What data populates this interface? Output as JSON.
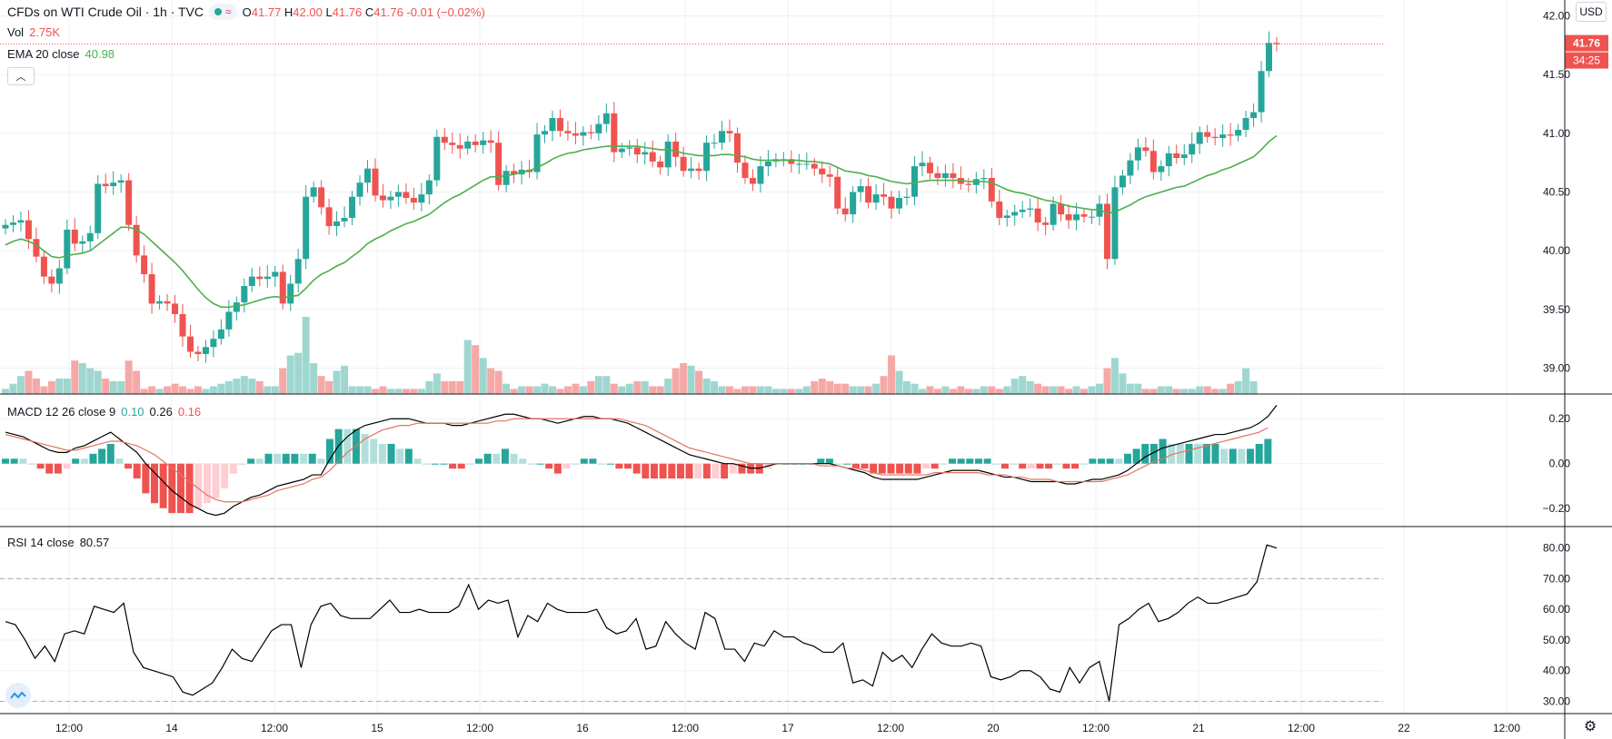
{
  "header": {
    "symbol_title": "CFDs on WTI Crude Oil · 1h · TVC",
    "ohlc": {
      "o_label": "O",
      "o": "41.77",
      "h_label": "H",
      "h": "42.00",
      "l_label": "L",
      "l": "41.76",
      "c_label": "C",
      "c": "41.76",
      "change": "-0.01 (−0.02%)"
    },
    "vol_label": "Vol",
    "vol_value": "2.75K",
    "ema_label": "EMA 20 close",
    "ema_value": "40.98",
    "collapse_icon": "chevron-up-icon",
    "currency": "USD"
  },
  "macd_legend": {
    "label": "MACD 12 26 close 9",
    "hist": "0.10",
    "macd": "0.26",
    "signal": "0.16"
  },
  "rsi_legend": {
    "label": "RSI 14 close",
    "value": "80.57"
  },
  "price_tag": {
    "price": "41.76",
    "countdown": "34:25"
  },
  "colors": {
    "up": "#26a69a",
    "down": "#ef5350",
    "ema": "#4caf50",
    "macd": "#000000",
    "signal": "#e5735f",
    "rsi": "#000000",
    "grid": "#eef0f3"
  },
  "chart_data": {
    "type": "candlestick",
    "title": "CFDs on WTI Crude Oil · 1h · TVC",
    "x_tick_labels": [
      "12:00",
      "14",
      "12:00",
      "15",
      "12:00",
      "16",
      "12:00",
      "17",
      "12:00",
      "20",
      "12:00",
      "21",
      "12:00",
      "22",
      "12:00"
    ],
    "price_axis": {
      "ticks": [
        "42.00",
        "41.50",
        "41.00",
        "40.50",
        "40.00",
        "39.50",
        "39.00"
      ],
      "range": [
        38.78,
        42.12
      ]
    },
    "candles_close": [
      40.22,
      40.24,
      40.26,
      40.1,
      39.95,
      39.78,
      39.72,
      39.85,
      40.18,
      40.06,
      40.08,
      40.15,
      40.57,
      40.55,
      40.58,
      40.6,
      40.22,
      39.96,
      39.8,
      39.55,
      39.57,
      39.55,
      39.46,
      39.27,
      39.14,
      39.12,
      39.18,
      39.25,
      39.33,
      39.48,
      39.56,
      39.7,
      39.78,
      39.76,
      39.78,
      39.82,
      39.55,
      39.72,
      39.93,
      40.46,
      40.54,
      40.37,
      40.21,
      40.25,
      40.28,
      40.46,
      40.58,
      40.7,
      40.47,
      40.43,
      40.46,
      40.5,
      40.45,
      40.41,
      40.48,
      40.6,
      40.97,
      40.92,
      40.9,
      40.87,
      40.93,
      40.9,
      40.94,
      40.92,
      40.56,
      40.68,
      40.65,
      40.69,
      40.67,
      40.99,
      41.02,
      41.13,
      41.02,
      41.0,
      40.98,
      41.01,
      41.0,
      41.08,
      41.17,
      40.84,
      40.87,
      40.88,
      40.82,
      40.84,
      40.76,
      40.71,
      40.93,
      40.8,
      40.68,
      40.7,
      40.68,
      40.92,
      40.92,
      41.02,
      41.0,
      40.75,
      40.62,
      40.57,
      40.72,
      40.76,
      40.78,
      40.78,
      40.74,
      40.74,
      40.74,
      40.7,
      40.65,
      40.63,
      40.36,
      40.31,
      40.5,
      40.55,
      40.41,
      40.48,
      40.46,
      40.36,
      40.45,
      40.46,
      40.72,
      40.75,
      40.66,
      40.62,
      40.66,
      40.62,
      40.57,
      40.56,
      40.61,
      40.62,
      40.42,
      40.28,
      40.3,
      40.33,
      40.35,
      40.36,
      40.24,
      40.22,
      40.4,
      40.31,
      40.26,
      40.31,
      40.29,
      40.29,
      40.4,
      39.93,
      40.54,
      40.64,
      40.77,
      40.88,
      40.85,
      40.67,
      40.72,
      40.83,
      40.79,
      40.82,
      40.91,
      41.01,
      40.97,
      40.96,
      40.99,
      40.98,
      41.03,
      41.13,
      41.18,
      41.53,
      41.77,
      41.76
    ],
    "ema20": [
      40.05,
      40.08,
      40.1,
      40.08,
      40.05,
      40.0,
      39.95,
      39.94,
      39.96,
      39.97,
      39.98,
      40.0,
      40.05,
      40.1,
      40.15,
      40.2,
      40.2,
      40.18,
      40.14,
      40.08,
      40.02,
      39.96,
      39.9,
      39.83,
      39.75,
      39.67,
      39.6,
      39.55,
      39.52,
      39.52,
      39.53,
      39.54,
      39.56,
      39.58,
      39.6,
      39.61,
      39.6,
      39.61,
      39.62,
      39.68,
      39.75,
      39.8,
      39.83,
      39.87,
      39.9,
      39.95,
      40.0,
      40.06,
      40.1,
      40.13,
      40.17,
      40.2,
      40.23,
      40.25,
      40.28,
      40.31,
      40.36,
      40.41,
      40.45,
      40.48,
      40.52,
      40.56,
      40.6,
      40.63,
      40.63,
      40.64,
      40.65,
      40.67,
      40.68,
      40.71,
      40.74,
      40.78,
      40.81,
      40.83,
      40.84,
      40.86,
      40.87,
      40.88,
      40.89,
      40.89,
      40.89,
      40.89,
      40.89,
      40.88,
      40.87,
      40.86,
      40.86,
      40.85,
      40.83,
      40.82,
      40.81,
      40.81,
      40.81,
      40.82,
      40.82,
      40.81,
      40.8,
      40.78,
      40.77,
      40.77,
      40.77,
      40.77,
      40.77,
      40.77,
      40.76,
      40.76,
      40.75,
      40.74,
      40.71,
      40.68,
      40.67,
      40.66,
      40.64,
      40.63,
      40.61,
      40.59,
      40.58,
      40.57,
      40.58,
      40.59,
      40.6,
      40.6,
      40.6,
      40.6,
      40.6,
      40.59,
      40.59,
      40.59,
      40.58,
      40.55,
      40.52,
      40.5,
      40.49,
      40.47,
      40.45,
      40.43,
      40.42,
      40.4,
      40.38,
      40.37,
      40.36,
      40.35,
      40.35,
      40.32,
      40.33,
      40.36,
      40.39,
      40.43,
      40.46,
      40.48,
      40.5,
      40.52,
      40.54,
      40.55,
      40.58,
      40.61,
      40.64,
      40.66,
      40.69,
      40.71,
      40.74,
      40.77,
      40.8,
      40.86,
      40.93,
      40.98
    ],
    "volume": [
      0.2,
      0.4,
      0.7,
      0.9,
      0.6,
      0.3,
      0.5,
      0.6,
      0.6,
      1.3,
      1.2,
      1.0,
      0.9,
      0.6,
      0.5,
      0.5,
      1.3,
      0.9,
      0.2,
      0.3,
      0.2,
      0.3,
      0.4,
      0.3,
      0.2,
      0.3,
      0.2,
      0.3,
      0.4,
      0.5,
      0.6,
      0.7,
      0.6,
      0.5,
      0.3,
      0.3,
      1.0,
      1.5,
      1.6,
      3.0,
      1.2,
      0.7,
      0.5,
      0.9,
      1.1,
      0.3,
      0.3,
      0.3,
      0.2,
      0.3,
      0.2,
      0.2,
      0.2,
      0.2,
      0.2,
      0.5,
      0.8,
      0.5,
      0.5,
      0.5,
      2.1,
      1.9,
      1.4,
      1.0,
      0.9,
      0.4,
      0.2,
      0.3,
      0.3,
      0.3,
      0.4,
      0.3,
      0.2,
      0.3,
      0.4,
      0.3,
      0.5,
      0.7,
      0.7,
      0.4,
      0.3,
      0.4,
      0.5,
      0.5,
      0.3,
      0.3,
      0.6,
      1.0,
      1.2,
      1.1,
      0.9,
      0.6,
      0.5,
      0.3,
      0.3,
      0.2,
      0.3,
      0.3,
      0.3,
      0.3,
      0.2,
      0.2,
      0.2,
      0.2,
      0.3,
      0.5,
      0.6,
      0.5,
      0.4,
      0.4,
      0.3,
      0.3,
      0.3,
      0.4,
      0.7,
      1.5,
      0.9,
      0.5,
      0.4,
      0.2,
      0.3,
      0.2,
      0.3,
      0.2,
      0.3,
      0.2,
      0.2,
      0.3,
      0.3,
      0.2,
      0.3,
      0.6,
      0.7,
      0.5,
      0.4,
      0.3,
      0.3,
      0.3,
      0.2,
      0.3,
      0.2,
      0.3,
      0.4,
      1.0,
      1.4,
      0.8,
      0.4,
      0.4,
      0.2,
      0.2,
      0.3,
      0.3,
      0.2,
      0.2,
      0.2,
      0.3,
      0.3,
      0.2,
      0.2,
      0.4,
      0.5,
      1.0,
      0.5
    ],
    "macd_axis": {
      "ticks": [
        "0.20",
        "0.00",
        "−0.20"
      ]
    },
    "macd": [
      0.14,
      0.13,
      0.12,
      0.1,
      0.08,
      0.06,
      0.05,
      0.05,
      0.07,
      0.08,
      0.1,
      0.12,
      0.14,
      0.11,
      0.08,
      0.05,
      0.0,
      -0.04,
      -0.08,
      -0.12,
      -0.15,
      -0.18,
      -0.2,
      -0.22,
      -0.23,
      -0.22,
      -0.19,
      -0.17,
      -0.15,
      -0.14,
      -0.12,
      -0.1,
      -0.09,
      -0.08,
      -0.07,
      -0.05,
      -0.05,
      0.02,
      0.08,
      0.12,
      0.15,
      0.17,
      0.18,
      0.19,
      0.2,
      0.2,
      0.2,
      0.19,
      0.18,
      0.18,
      0.18,
      0.17,
      0.17,
      0.18,
      0.19,
      0.2,
      0.21,
      0.22,
      0.22,
      0.21,
      0.2,
      0.2,
      0.19,
      0.18,
      0.19,
      0.2,
      0.21,
      0.21,
      0.2,
      0.2,
      0.19,
      0.18,
      0.16,
      0.14,
      0.12,
      0.1,
      0.08,
      0.06,
      0.04,
      0.03,
      0.02,
      0.01,
      0.0,
      0.0,
      -0.01,
      -0.02,
      -0.02,
      -0.01,
      0.0,
      0.0,
      0.0,
      0.0,
      0.0,
      0.0,
      0.0,
      -0.01,
      -0.02,
      -0.03,
      -0.04,
      -0.06,
      -0.07,
      -0.07,
      -0.07,
      -0.07,
      -0.07,
      -0.06,
      -0.05,
      -0.04,
      -0.03,
      -0.03,
      -0.03,
      -0.03,
      -0.04,
      -0.05,
      -0.06,
      -0.06,
      -0.07,
      -0.08,
      -0.08,
      -0.08,
      -0.08,
      -0.09,
      -0.09,
      -0.08,
      -0.07,
      -0.07,
      -0.06,
      -0.05,
      -0.03,
      0.0,
      0.03,
      0.05,
      0.07,
      0.08,
      0.09,
      0.1,
      0.11,
      0.12,
      0.13,
      0.13,
      0.14,
      0.15,
      0.16,
      0.18,
      0.21,
      0.26
    ],
    "macd_signal": [
      0.13,
      0.12,
      0.11,
      0.1,
      0.09,
      0.08,
      0.07,
      0.06,
      0.06,
      0.07,
      0.08,
      0.09,
      0.1,
      0.1,
      0.09,
      0.08,
      0.06,
      0.04,
      0.01,
      -0.02,
      -0.05,
      -0.08,
      -0.11,
      -0.14,
      -0.16,
      -0.17,
      -0.17,
      -0.17,
      -0.16,
      -0.15,
      -0.14,
      -0.12,
      -0.11,
      -0.1,
      -0.09,
      -0.07,
      -0.06,
      -0.03,
      0.01,
      0.05,
      0.08,
      0.11,
      0.13,
      0.15,
      0.16,
      0.17,
      0.17,
      0.18,
      0.18,
      0.18,
      0.18,
      0.18,
      0.18,
      0.18,
      0.18,
      0.18,
      0.19,
      0.19,
      0.2,
      0.2,
      0.2,
      0.2,
      0.2,
      0.2,
      0.2,
      0.2,
      0.2,
      0.2,
      0.2,
      0.2,
      0.2,
      0.19,
      0.18,
      0.17,
      0.15,
      0.13,
      0.11,
      0.09,
      0.07,
      0.06,
      0.05,
      0.04,
      0.03,
      0.02,
      0.01,
      0.0,
      0.0,
      0.0,
      0.0,
      0.0,
      0.0,
      0.0,
      0.0,
      -0.01,
      -0.01,
      -0.01,
      -0.02,
      -0.02,
      -0.03,
      -0.04,
      -0.05,
      -0.05,
      -0.05,
      -0.05,
      -0.05,
      -0.05,
      -0.04,
      -0.04,
      -0.04,
      -0.04,
      -0.04,
      -0.04,
      -0.05,
      -0.05,
      -0.05,
      -0.06,
      -0.06,
      -0.07,
      -0.07,
      -0.07,
      -0.08,
      -0.08,
      -0.08,
      -0.08,
      -0.08,
      -0.08,
      -0.07,
      -0.06,
      -0.05,
      -0.03,
      -0.01,
      0.01,
      0.02,
      0.04,
      0.05,
      0.06,
      0.07,
      0.08,
      0.09,
      0.1,
      0.11,
      0.12,
      0.13,
      0.14,
      0.16
    ],
    "rsi_axis": {
      "ticks": [
        "80.00",
        "70.00",
        "60.00",
        "50.00",
        "40.00",
        "30.00"
      ],
      "bands": [
        70,
        30
      ]
    },
    "rsi": [
      56,
      55,
      50,
      44,
      48,
      43,
      52,
      53,
      52,
      61,
      60,
      59,
      62,
      46,
      41,
      40,
      39,
      38,
      33,
      32,
      34,
      36,
      41,
      47,
      44,
      43,
      48,
      53,
      55,
      55,
      41,
      55,
      61,
      62,
      58,
      57,
      57,
      57,
      60,
      63,
      59,
      59,
      60,
      59,
      59,
      59,
      61,
      68,
      60,
      63,
      62,
      63,
      51,
      58,
      56,
      62,
      60,
      59,
      59,
      59,
      60,
      54,
      52,
      53,
      57,
      47,
      48,
      56,
      52,
      49,
      47,
      59,
      57,
      47,
      47,
      43,
      49,
      48,
      53,
      51,
      51,
      49,
      48,
      46,
      46,
      49,
      36,
      37,
      35,
      46,
      43,
      45,
      41,
      47,
      52,
      49,
      48,
      48,
      49,
      48,
      38,
      37,
      38,
      40,
      40,
      38,
      34,
      33,
      41,
      36,
      41,
      43,
      30,
      55,
      57,
      60,
      62,
      56,
      57,
      59,
      62,
      64,
      62,
      62,
      63,
      64,
      65,
      69,
      81,
      80
    ]
  }
}
